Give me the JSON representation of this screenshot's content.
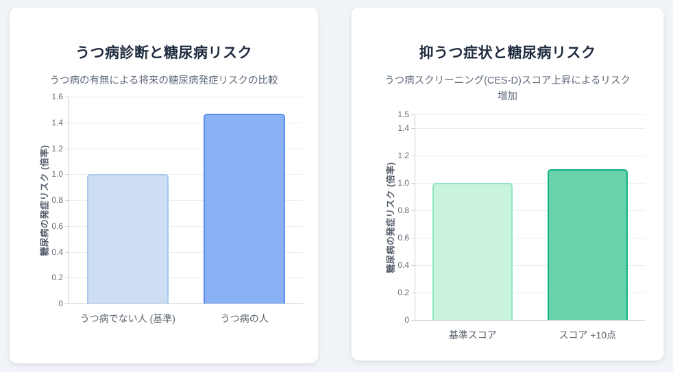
{
  "page": {
    "background_color": "#f0f3f7",
    "card_color": "#ffffff"
  },
  "chart_data": [
    {
      "type": "bar",
      "title": "うつ病診断と糖尿病リスク",
      "subtitle": "うつ病の有無による将来の糖尿病発症リスクの比較",
      "ylabel": "糖尿病の発症リスク (倍率)",
      "xlabel": "",
      "categories": [
        "うつ病でない人 (基準)",
        "うつ病の人"
      ],
      "values": [
        1.0,
        1.47
      ],
      "ylim": [
        0,
        1.6
      ],
      "ytick_labels": [
        "0",
        "0.2",
        "0.4",
        "0.6",
        "0.8",
        "1.0",
        "1.2",
        "1.4",
        "1.6"
      ],
      "grid": true,
      "legend": "none",
      "bar_styles": [
        {
          "fill": "#cddef4",
          "border": "#a9c7ee"
        },
        {
          "fill": "#8ab1f5",
          "border": "#5b8def"
        }
      ]
    },
    {
      "type": "bar",
      "title": "抑うつ症状と糖尿病リスク",
      "subtitle": "うつ病スクリーニング(CES-D)スコア上昇によるリスク増加",
      "ylabel": "糖尿病の発症リスク (倍率)",
      "xlabel": "",
      "categories": [
        "基準スコア",
        "スコア +10点"
      ],
      "values": [
        1.0,
        1.1
      ],
      "ylim": [
        0,
        1.5
      ],
      "ytick_labels": [
        "0",
        "0.2",
        "0.4",
        "0.6",
        "0.8",
        "1.0",
        "1.2",
        "1.4",
        "1.5"
      ],
      "grid": true,
      "legend": "none",
      "bar_styles": [
        {
          "fill": "#caf3de",
          "border": "#8fe7c2"
        },
        {
          "fill": "#68d2aa",
          "border": "#10b17f"
        }
      ]
    }
  ]
}
